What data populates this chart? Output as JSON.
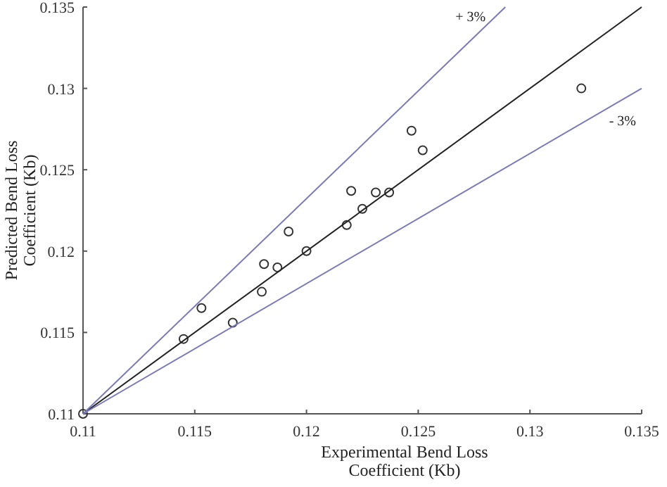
{
  "chart_data": {
    "type": "scatter",
    "xlabel": "Experimental Bend Loss\nCoefficient (Kb)",
    "ylabel": "Predicted Bend Loss\nCoefficient (Kb)",
    "xlim": [
      0.11,
      0.135
    ],
    "ylim": [
      0.11,
      0.135
    ],
    "xticks": [
      0.11,
      0.115,
      0.12,
      0.125,
      0.13,
      0.135
    ],
    "yticks": [
      0.11,
      0.115,
      0.12,
      0.125,
      0.13,
      0.135
    ],
    "grid": false,
    "marker": "circle",
    "series": [
      {
        "color": "#333333",
        "x": [
          0.11,
          0.1145,
          0.1153,
          0.1167,
          0.118,
          0.1181,
          0.1187,
          0.1192,
          0.12,
          0.1218,
          0.122,
          0.1225,
          0.1231,
          0.1237,
          0.1247,
          0.1252,
          0.1323
        ],
        "values": [
          0.11,
          0.1146,
          0.1165,
          0.1156,
          0.1175,
          0.1192,
          0.119,
          0.1212,
          0.12,
          0.1216,
          0.1237,
          0.1226,
          0.1236,
          0.1236,
          0.1274,
          0.1262,
          0.13
        ]
      },
      {
        "type": "line",
        "color": "#222222",
        "marker": "none",
        "line_style": "solid",
        "x": [
          0.11,
          0.135
        ],
        "values": [
          0.11,
          0.135
        ]
      },
      {
        "type": "line",
        "name": "+ 3%",
        "color": "#7a7ab8",
        "marker": "none",
        "line_style": "solid",
        "x": [
          0.11,
          0.1289
        ],
        "values": [
          0.11,
          0.135
        ]
      },
      {
        "type": "line",
        "name": "- 3%",
        "color": "#7a7ab8",
        "marker": "none",
        "line_style": "solid",
        "x": [
          0.11,
          0.135
        ],
        "values": [
          0.11,
          0.13
        ]
      }
    ]
  }
}
